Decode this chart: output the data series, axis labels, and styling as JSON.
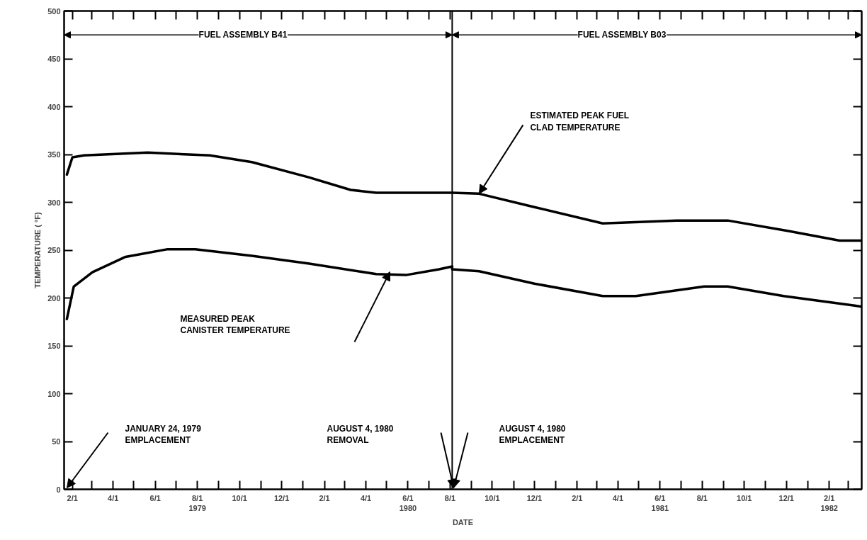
{
  "chart_data": {
    "type": "line",
    "xlabel": "DATE",
    "ylabel": "TEMPERATURE ( °F)",
    "xlim": [
      "1979-01-20",
      "1982-03-20"
    ],
    "ylim": [
      0,
      500
    ],
    "yticks": [
      0,
      50,
      100,
      150,
      200,
      250,
      300,
      350,
      400,
      450,
      500
    ],
    "xticks": [
      {
        "value": "1979-02-01",
        "label": "2/1"
      },
      {
        "value": "1979-03-01",
        "label": null
      },
      {
        "value": "1979-04-01",
        "label": "4/1"
      },
      {
        "value": "1979-05-01",
        "label": null
      },
      {
        "value": "1979-06-01",
        "label": "6/1"
      },
      {
        "value": "1979-07-01",
        "label": null
      },
      {
        "value": "1979-08-01",
        "label": "8/1\n1979"
      },
      {
        "value": "1979-09-01",
        "label": null
      },
      {
        "value": "1979-10-01",
        "label": "10/1"
      },
      {
        "value": "1979-11-01",
        "label": null
      },
      {
        "value": "1979-12-01",
        "label": "12/1"
      },
      {
        "value": "1980-01-01",
        "label": null
      },
      {
        "value": "1980-02-01",
        "label": "2/1"
      },
      {
        "value": "1980-03-01",
        "label": null
      },
      {
        "value": "1980-04-01",
        "label": "4/1"
      },
      {
        "value": "1980-05-01",
        "label": null
      },
      {
        "value": "1980-06-01",
        "label": "6/1\n1980"
      },
      {
        "value": "1980-07-01",
        "label": null
      },
      {
        "value": "1980-08-01",
        "label": "8/1"
      },
      {
        "value": "1980-09-01",
        "label": null
      },
      {
        "value": "1980-10-01",
        "label": "10/1"
      },
      {
        "value": "1980-11-01",
        "label": null
      },
      {
        "value": "1980-12-01",
        "label": "12/1"
      },
      {
        "value": "1981-01-01",
        "label": null
      },
      {
        "value": "1981-02-01",
        "label": "2/1"
      },
      {
        "value": "1981-03-01",
        "label": null
      },
      {
        "value": "1981-04-01",
        "label": "4/1"
      },
      {
        "value": "1981-05-01",
        "label": null
      },
      {
        "value": "1981-06-01",
        "label": "6/1\n1981"
      },
      {
        "value": "1981-07-01",
        "label": null
      },
      {
        "value": "1981-08-01",
        "label": "8/1"
      },
      {
        "value": "1981-09-01",
        "label": null
      },
      {
        "value": "1981-10-01",
        "label": "10/1"
      },
      {
        "value": "1981-11-01",
        "label": null
      },
      {
        "value": "1981-12-01",
        "label": "12/1"
      },
      {
        "value": "1982-01-01",
        "label": null
      },
      {
        "value": "1982-02-01",
        "label": "2/1\n1982"
      },
      {
        "value": "1982-03-01",
        "label": null
      }
    ],
    "grid": false,
    "marker": "none",
    "line_style": "solid",
    "series": [
      {
        "color": "#000000",
        "x": [
          "1979-01-24",
          "1979-02-01",
          "1979-02-18",
          "1979-05-21",
          "1979-08-19",
          "1979-10-19",
          "1980-01-10",
          "1980-03-10",
          "1980-04-16",
          "1980-07-16",
          "1980-08-04",
          "1980-09-12",
          "1980-12-01",
          "1981-03-10",
          "1981-06-25",
          "1981-09-07",
          "1981-12-04",
          "1982-02-16",
          "1982-03-20"
        ],
        "values": [
          329,
          347,
          349,
          352,
          349,
          342,
          326,
          313,
          310,
          310,
          310,
          309,
          295,
          278,
          281,
          281,
          270,
          260,
          260
        ]
      },
      {
        "color": "#000000",
        "x": [
          "1979-01-24",
          "1979-02-03",
          "1979-03-02",
          "1979-04-19",
          "1979-06-19",
          "1979-07-29",
          "1979-10-19",
          "1980-01-10",
          "1980-04-16",
          "1980-05-29",
          "1980-07-16",
          "1980-08-04",
          "1980-08-04",
          "1980-09-12",
          "1980-12-01",
          "1981-03-10",
          "1981-04-27",
          "1981-08-04",
          "1981-09-07",
          "1981-11-27",
          "1982-03-10",
          "1982-03-20"
        ],
        "values": [
          178,
          212,
          227,
          243,
          251,
          251,
          244,
          236,
          225,
          224,
          230,
          233,
          230,
          228,
          215,
          202,
          202,
          212,
          212,
          202,
          192,
          191
        ]
      }
    ],
    "ref_lines": [
      {
        "axis": "x",
        "value": "1980-08-04",
        "color": "#000000"
      }
    ],
    "annotations": [
      {
        "text": "FUEL ASSEMBLY B41",
        "x": "1980-08-04",
        "y": 475
      },
      {
        "text": "FUEL ASSEMBLY B03",
        "x": "1980-08-04",
        "y": 475
      },
      {
        "text": "ESTIMATED PEAK FUEL\nCLAD TEMPERATURE",
        "x": "1980-09-12",
        "y": 309
      },
      "MEASURED PEAK\nCANISTER TEMPERATURE",
      "JANUARY 24, 1979\nEMPLACEMENT",
      "AUGUST 4, 1980\nREMOVAL",
      "AUGUST 4, 1980\nEMPLACEMENT"
    ]
  }
}
